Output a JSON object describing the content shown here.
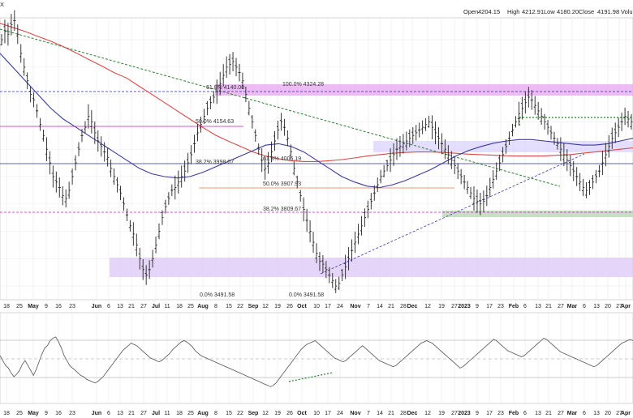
{
  "chart_data": {
    "type": "line",
    "title": "",
    "header": {
      "symbol_fragment": "X",
      "open_label": "Open",
      "open": "4204.15",
      "high_label": "High",
      "high": "4212.91",
      "low_label": "Low",
      "low": "4180.20",
      "close_label": "Close",
      "close": "4191.98",
      "volume_label": "Volu"
    },
    "x_tick_labels": [
      {
        "text": "18",
        "bold": false
      },
      {
        "text": "25",
        "bold": false
      },
      {
        "text": "May",
        "bold": true
      },
      {
        "text": "9",
        "bold": false
      },
      {
        "text": "16",
        "bold": false
      },
      {
        "text": "23",
        "bold": false
      },
      {
        "text": "Jun",
        "bold": true
      },
      {
        "text": "6",
        "bold": false
      },
      {
        "text": "13",
        "bold": false
      },
      {
        "text": "21",
        "bold": false
      },
      {
        "text": "27",
        "bold": false
      },
      {
        "text": "Jul",
        "bold": true
      },
      {
        "text": "11",
        "bold": false
      },
      {
        "text": "18",
        "bold": false
      },
      {
        "text": "25",
        "bold": false
      },
      {
        "text": "Aug",
        "bold": true
      },
      {
        "text": "8",
        "bold": false
      },
      {
        "text": "15",
        "bold": false
      },
      {
        "text": "22",
        "bold": false
      },
      {
        "text": "Sep",
        "bold": true
      },
      {
        "text": "12",
        "bold": false
      },
      {
        "text": "19",
        "bold": false
      },
      {
        "text": "26",
        "bold": false
      },
      {
        "text": "Oct",
        "bold": true
      },
      {
        "text": "10",
        "bold": false
      },
      {
        "text": "17",
        "bold": false
      },
      {
        "text": "24",
        "bold": false
      },
      {
        "text": "Nov",
        "bold": true
      },
      {
        "text": "7",
        "bold": false
      },
      {
        "text": "14",
        "bold": false
      },
      {
        "text": "21",
        "bold": false
      },
      {
        "text": "28",
        "bold": false
      },
      {
        "text": "Dec",
        "bold": true
      },
      {
        "text": "12",
        "bold": false
      },
      {
        "text": "19",
        "bold": false
      },
      {
        "text": "27",
        "bold": false
      },
      {
        "text": "2023",
        "bold": true
      },
      {
        "text": "9",
        "bold": false
      },
      {
        "text": "17",
        "bold": false
      },
      {
        "text": "23",
        "bold": false
      },
      {
        "text": "Feb",
        "bold": true
      },
      {
        "text": "6",
        "bold": false
      },
      {
        "text": "13",
        "bold": false
      },
      {
        "text": "21",
        "bold": false
      },
      {
        "text": "27",
        "bold": false
      },
      {
        "text": "Mar",
        "bold": true
      },
      {
        "text": "6",
        "bold": false
      },
      {
        "text": "13",
        "bold": false
      },
      {
        "text": "20",
        "bold": false
      },
      {
        "text": "27",
        "bold": false
      },
      {
        "text": "Apr",
        "bold": true
      }
    ],
    "fib_labels": [
      {
        "text": "100.0% 4324.28",
        "price": 4324.28
      },
      {
        "text": "61.8% 4140.00",
        "price": 4315
      },
      {
        "text": "50.0% 4154.63",
        "price": 4154.63
      },
      {
        "text": "38.2% 3998.07",
        "price": 4010
      },
      {
        "text": "61.8% 4006.19",
        "price": 4006.19
      },
      {
        "text": "50.0% 3907.93",
        "price": 3907.93
      },
      {
        "text": "38.2% 3809.67",
        "price": 3809.67
      },
      {
        "text": "0.0% 3491.58",
        "price": 3491.58
      },
      {
        "text": "0.0% 3491.58",
        "price": 3491.58
      }
    ],
    "price_range": [
      3450,
      4480
    ],
    "rsi_range": [
      20,
      80
    ],
    "ma_long": [
      4460,
      4445,
      4430,
      4412,
      4395,
      4375,
      4352,
      4328,
      4305,
      4280,
      4260,
      4230,
      4200,
      4170,
      4140,
      4110,
      4080,
      4052,
      4030,
      4010,
      3990,
      3975,
      3965,
      3958,
      3955,
      3955,
      3958,
      3962,
      3968,
      3975,
      3980,
      3985,
      3988,
      3990,
      3990,
      3988,
      3985,
      3982,
      3980,
      3978,
      3976,
      3975,
      3975,
      3975,
      3978,
      3980,
      3985,
      3990,
      3995,
      4000,
      4005
    ],
    "ma_short": [
      4350,
      4300,
      4250,
      4200,
      4150,
      4110,
      4080,
      4050,
      4020,
      3990,
      3960,
      3930,
      3910,
      3900,
      3895,
      3900,
      3915,
      3935,
      3955,
      3975,
      3995,
      4015,
      4020,
      4010,
      3990,
      3960,
      3930,
      3900,
      3880,
      3865,
      3860,
      3870,
      3885,
      3905,
      3925,
      3950,
      3975,
      3995,
      4010,
      4022,
      4030,
      4035,
      4035,
      4030,
      4025,
      4020,
      4015,
      4015,
      4020,
      4030,
      4040
    ],
    "rsi_values": [
      52,
      48,
      44,
      42,
      38,
      35,
      37,
      40,
      45,
      48,
      44,
      40,
      36,
      41,
      47,
      53,
      58,
      60,
      64,
      66,
      67,
      63,
      58,
      52,
      48,
      44,
      42,
      40,
      38,
      36,
      35,
      33,
      32,
      31,
      30,
      31,
      33,
      35,
      38,
      41,
      44,
      47,
      50,
      53,
      56,
      58,
      60,
      62,
      61,
      60,
      58,
      56,
      54,
      52,
      50,
      49,
      48,
      47,
      48,
      50,
      52,
      54,
      57,
      59,
      61,
      63,
      64,
      63,
      61,
      59,
      56,
      54,
      52,
      51,
      50,
      49,
      48,
      47,
      46,
      45,
      44,
      43,
      42,
      41,
      40,
      39,
      38,
      37,
      36,
      35,
      34,
      33,
      32,
      31,
      30,
      29,
      28,
      27,
      28,
      30,
      33,
      36,
      39,
      42,
      45,
      48,
      51,
      54,
      57,
      59,
      61,
      62,
      63,
      64,
      62,
      60,
      58,
      56,
      54,
      52,
      50,
      49,
      48,
      47,
      48,
      50,
      52,
      54,
      56,
      58,
      60,
      58,
      56,
      54,
      52,
      50,
      48,
      47,
      46,
      45,
      44,
      43,
      44,
      46,
      48,
      50,
      52,
      54,
      56,
      58,
      60,
      62,
      63,
      64,
      63,
      62,
      60,
      58,
      56,
      54,
      52,
      50,
      48,
      46,
      44,
      42,
      43,
      45,
      47,
      49,
      51,
      53,
      55,
      57,
      59,
      61,
      63,
      65,
      64,
      62,
      60,
      58,
      56,
      55,
      54,
      53,
      52,
      51,
      52,
      54,
      56,
      58,
      60,
      62,
      64,
      66,
      65,
      63,
      61,
      59,
      57,
      55,
      54,
      53,
      52,
      51,
      50,
      49,
      48,
      47,
      46,
      45,
      44,
      43,
      44,
      46,
      48,
      50,
      52,
      54,
      56,
      58,
      60,
      62,
      63,
      64,
      65,
      64
    ],
    "bars": [
      4400,
      4430,
      4420,
      4455,
      4470,
      4420,
      4350,
      4300,
      4250,
      4200,
      4180,
      4140,
      4090,
      4050,
      4000,
      3950,
      3900,
      3880,
      3860,
      3830,
      3820,
      3850,
      3900,
      3950,
      4000,
      4050,
      4080,
      4120,
      4100,
      4060,
      4030,
      4010,
      3990,
      3970,
      3930,
      3900,
      3870,
      3840,
      3800,
      3760,
      3720,
      3690,
      3650,
      3600,
      3560,
      3540,
      3560,
      3600,
      3650,
      3700,
      3750,
      3790,
      3820,
      3850,
      3860,
      3880,
      3900,
      3920,
      3950,
      3980,
      4020,
      4060,
      4090,
      4120,
      4150,
      4170,
      4190,
      4210,
      4240,
      4270,
      4300,
      4310,
      4320,
      4300,
      4280,
      4250,
      4200,
      4150,
      4100,
      4050,
      4000,
      3960,
      3930,
      3950,
      3990,
      4030,
      4070,
      4100,
      4080,
      4040,
      3990,
      3930,
      3880,
      3830,
      3780,
      3740,
      3700,
      3660,
      3620,
      3590,
      3580,
      3560,
      3540,
      3520,
      3500,
      3510,
      3540,
      3570,
      3600,
      3630,
      3660,
      3690,
      3720,
      3750,
      3780,
      3810,
      3840,
      3870,
      3900,
      3920,
      3940,
      3960,
      3980,
      4000,
      4010,
      4020,
      4030,
      4040,
      4050,
      4060,
      4070,
      4080,
      4090,
      4100,
      4080,
      4060,
      4040,
      4020,
      4000,
      3980,
      3960,
      3940,
      3920,
      3900,
      3880,
      3860,
      3840,
      3820,
      3810,
      3800,
      3810,
      3830,
      3860,
      3890,
      3920,
      3950,
      3980,
      4010,
      4040,
      4070,
      4100,
      4130,
      4150,
      4170,
      4190,
      4180,
      4160,
      4140,
      4120,
      4100,
      4080,
      4060,
      4040,
      4020,
      4000,
      3980,
      3960,
      3940,
      3920,
      3900,
      3880,
      3860,
      3850,
      3860,
      3880,
      3900,
      3920,
      3950,
      3980,
      4010,
      4040,
      4060,
      4080,
      4100,
      4120,
      4110,
      4100
    ]
  }
}
